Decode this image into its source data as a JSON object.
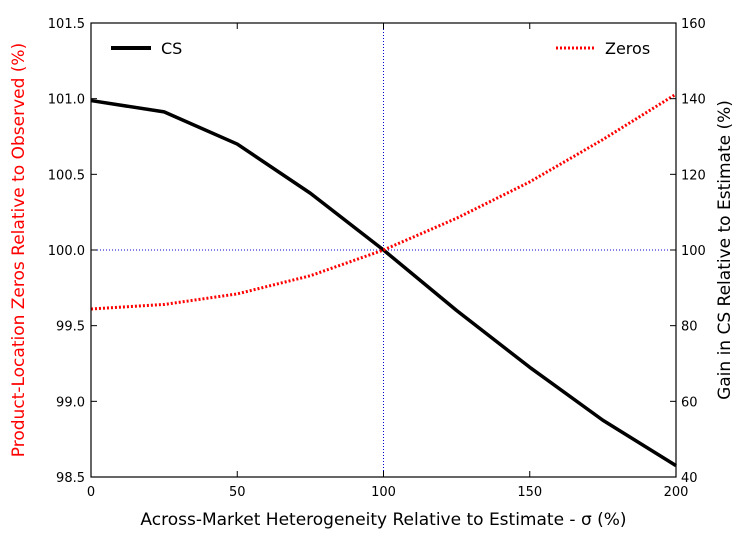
{
  "chart_data": {
    "type": "line",
    "xlabel": "Across-Market Heterogeneity Relative to Estimate - σ (%)",
    "ylabel_left": "Product-Location Zeros Relative to Observed (%)",
    "ylabel_right": "Gain in CS Relative to Estimate (%)",
    "xlim": [
      0,
      200
    ],
    "ylim_left": [
      98.5,
      101.5
    ],
    "ylim_right": [
      40,
      160
    ],
    "x_ticks": [
      "0",
      "50",
      "100",
      "150",
      "200"
    ],
    "y_left_ticks": [
      "98.5",
      "99.0",
      "99.5",
      "100.0",
      "100.5",
      "101.0",
      "101.5"
    ],
    "y_right_ticks": [
      "40",
      "60",
      "80",
      "100",
      "120",
      "140",
      "160"
    ],
    "reference_lines": {
      "x": 100,
      "y_left": 100.0
    },
    "x": [
      0,
      25,
      50,
      75,
      100,
      125,
      150,
      175,
      200
    ],
    "series": [
      {
        "name": "CS",
        "axis": "right",
        "color": "#000000",
        "style": "solid",
        "values": [
          139.5,
          136.5,
          128,
          115,
          100,
          84,
          69,
          55,
          43
        ]
      },
      {
        "name": "Zeros",
        "axis": "left",
        "color": "#ff0000",
        "style": "dotted",
        "values": [
          99.61,
          99.64,
          99.71,
          99.83,
          100.0,
          100.21,
          100.45,
          100.73,
          101.03
        ]
      }
    ],
    "legend": [
      "CS",
      "Zeros"
    ],
    "left_label_color": "#ff0000"
  }
}
